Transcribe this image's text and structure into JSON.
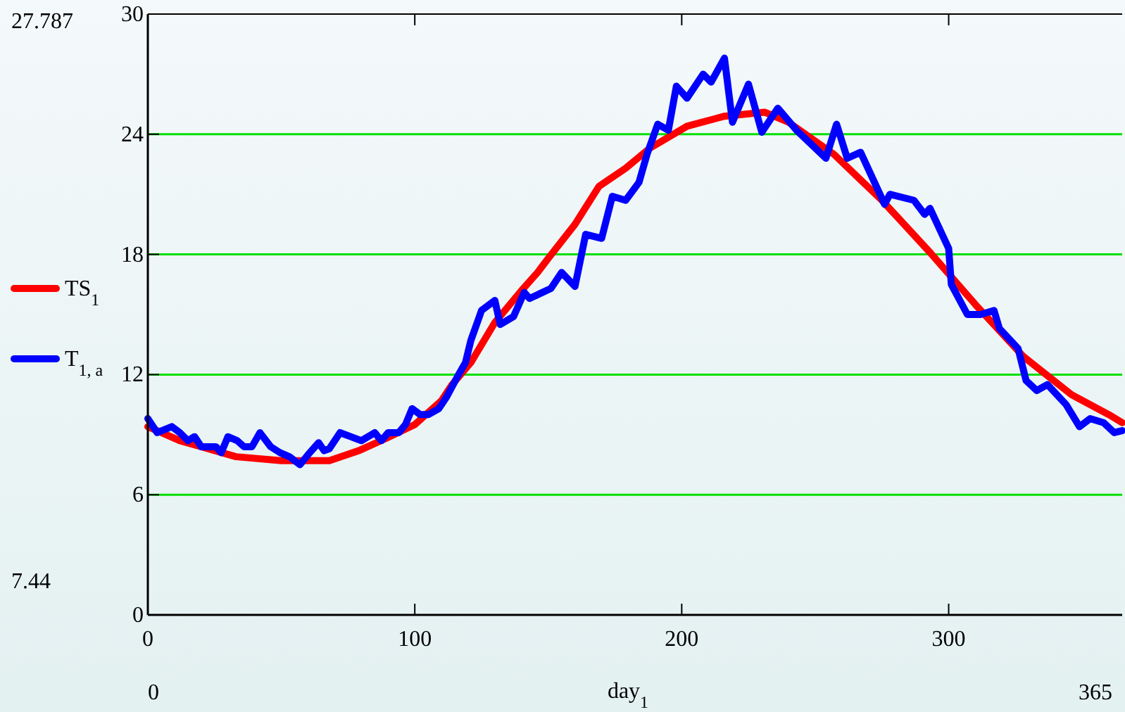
{
  "chart_data": {
    "type": "line",
    "xlabel": "day$_{1}$",
    "xlim": [
      0,
      365
    ],
    "ylim": [
      0,
      30
    ],
    "xticks": [
      0,
      100,
      200,
      300
    ],
    "yticks": [
      0,
      6,
      12,
      18,
      24,
      30
    ],
    "grid": "y",
    "legend": "left",
    "line_style": "solid",
    "marker": "none",
    "annotations": [
      "27.787",
      "7.44",
      "0",
      "365"
    ],
    "series": [
      {
        "name": "TS$_{1}$",
        "color": "#ff0000",
        "x": [
          0,
          12,
          20,
          33,
          50,
          68,
          79,
          89,
          100,
          110,
          114,
          121,
          130,
          140,
          146,
          150,
          160,
          169,
          179,
          188,
          202,
          216,
          231,
          240,
          257,
          275,
          293,
          310,
          328,
          346,
          360,
          365
        ],
        "values": [
          9.4,
          8.7,
          8.4,
          7.9,
          7.7,
          7.7,
          8.2,
          8.8,
          9.5,
          10.7,
          11.5,
          12.6,
          14.6,
          16.2,
          17.1,
          17.8,
          19.5,
          21.4,
          22.3,
          23.3,
          24.4,
          24.9,
          25.1,
          24.6,
          23.0,
          20.7,
          18.1,
          15.5,
          12.9,
          11.0,
          10.0,
          9.6
        ]
      },
      {
        "name": "T$_{1, a}$",
        "color": "#0000ff",
        "x": [
          0,
          3.5,
          9,
          12,
          15,
          17.5,
          20,
          25.5,
          27.5,
          30,
          33.5,
          36,
          39,
          42,
          46,
          49.5,
          53,
          57,
          60,
          64,
          66,
          68,
          72,
          76,
          80,
          85,
          87.5,
          90,
          94,
          96.5,
          99,
          102,
          105,
          109,
          112,
          116,
          119,
          121,
          125,
          130,
          132,
          137,
          141,
          143,
          151,
          155,
          160,
          164,
          170,
          174,
          179,
          184,
          187,
          191,
          195,
          198,
          202,
          208,
          211,
          216,
          219,
          225,
          230,
          236,
          243,
          254,
          258,
          262,
          267,
          276,
          278,
          287,
          291,
          293,
          300,
          301,
          307,
          312,
          317,
          319,
          326,
          329,
          333,
          337,
          344,
          349,
          353,
          358,
          362,
          365
        ],
        "values": [
          9.8,
          9.1,
          9.4,
          9.1,
          8.7,
          8.9,
          8.4,
          8.4,
          8.1,
          8.9,
          8.7,
          8.4,
          8.4,
          9.1,
          8.4,
          8.1,
          7.9,
          7.5,
          8.0,
          8.6,
          8.2,
          8.3,
          9.1,
          8.9,
          8.7,
          9.1,
          8.7,
          9.1,
          9.1,
          9.5,
          10.3,
          10.0,
          10.0,
          10.3,
          10.9,
          11.9,
          12.6,
          13.7,
          15.2,
          15.7,
          14.5,
          14.9,
          16.1,
          15.8,
          16.3,
          17.1,
          16.4,
          19.0,
          18.8,
          20.9,
          20.7,
          21.6,
          23.0,
          24.5,
          24.2,
          26.4,
          25.8,
          27.0,
          26.6,
          27.8,
          24.6,
          26.5,
          24.1,
          25.3,
          24.2,
          22.8,
          24.5,
          22.8,
          23.1,
          20.5,
          21.0,
          20.7,
          20.0,
          20.3,
          18.3,
          16.5,
          15.0,
          15.0,
          15.2,
          14.3,
          13.3,
          11.7,
          11.2,
          11.5,
          10.5,
          9.4,
          9.8,
          9.6,
          9.1,
          9.2
        ]
      }
    ]
  }
}
